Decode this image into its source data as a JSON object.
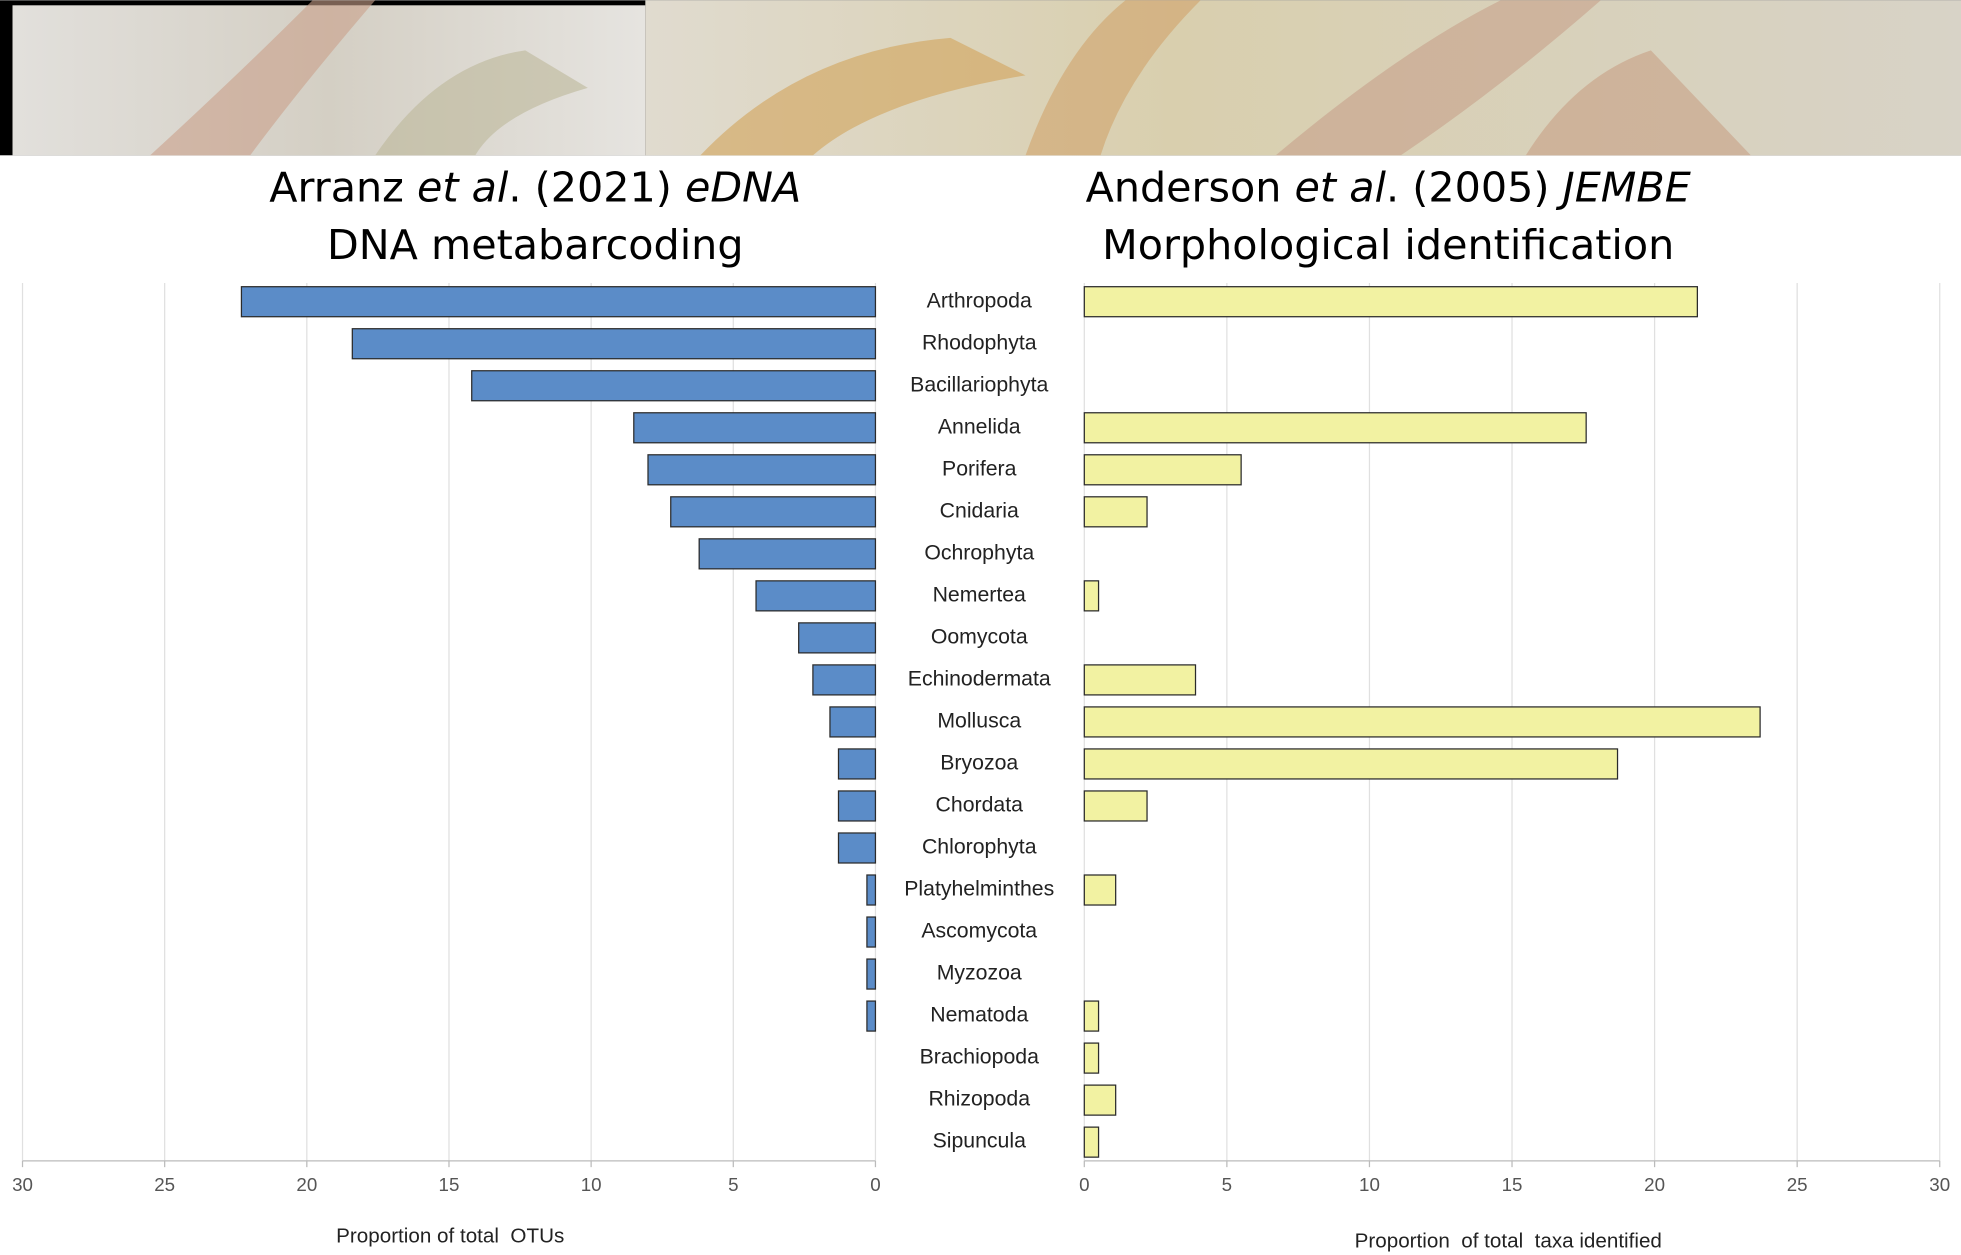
{
  "chart_data": [
    {
      "type": "bar",
      "orientation": "horizontal",
      "title": [
        {
          "text": "Arranz "
        },
        {
          "text": "et al",
          "italic": true
        },
        {
          "text": ". (2021) "
        },
        {
          "text": "eDNA",
          "italic": true
        }
      ],
      "subtitle": "DNA metabarcoding",
      "xlabel": "Proportion of total  OTUs",
      "categories": [
        "Arthropoda",
        "Rhodophyta",
        "Bacillariophyta",
        "Annelida",
        "Porifera",
        "Cnidaria",
        "Ochrophyta",
        "Nemertea",
        "Oomycota",
        "Echinodermata",
        "Mollusca",
        "Bryozoa",
        "Chordata",
        "Chlorophyta",
        "Platyhelminthes",
        "Ascomycota",
        "Myzozoa",
        "Nematoda",
        "Brachiopoda",
        "Rhizopoda",
        "Sipuncula"
      ],
      "values": [
        22.3,
        18.4,
        14.2,
        8.5,
        8.0,
        7.2,
        6.2,
        4.2,
        2.7,
        2.2,
        1.6,
        1.3,
        1.3,
        1.3,
        0.3,
        0.3,
        0.3,
        0.3,
        0,
        0,
        0
      ],
      "color": "#5b8cc8",
      "xlim": [
        30,
        0
      ],
      "xticks": [
        30,
        25,
        20,
        15,
        10,
        5,
        0
      ],
      "grid": true
    },
    {
      "type": "bar",
      "orientation": "horizontal",
      "title": [
        {
          "text": "Anderson "
        },
        {
          "text": "et al",
          "italic": true
        },
        {
          "text": ". (2005) "
        },
        {
          "text": "JEMBE",
          "italic": true
        }
      ],
      "subtitle": "Morphological identification",
      "xlabel": "Proportion  of total  taxa identified",
      "values": [
        21.5,
        0,
        0,
        17.6,
        5.5,
        2.2,
        0,
        0.5,
        0,
        3.9,
        23.7,
        18.7,
        2.2,
        0,
        1.1,
        0,
        0,
        0.5,
        0.5,
        1.1,
        0.5
      ],
      "color": "#f2f2a2",
      "xlim": [
        0,
        30
      ],
      "xticks": [
        0,
        5,
        10,
        15,
        20,
        25,
        30
      ],
      "grid": true
    }
  ]
}
